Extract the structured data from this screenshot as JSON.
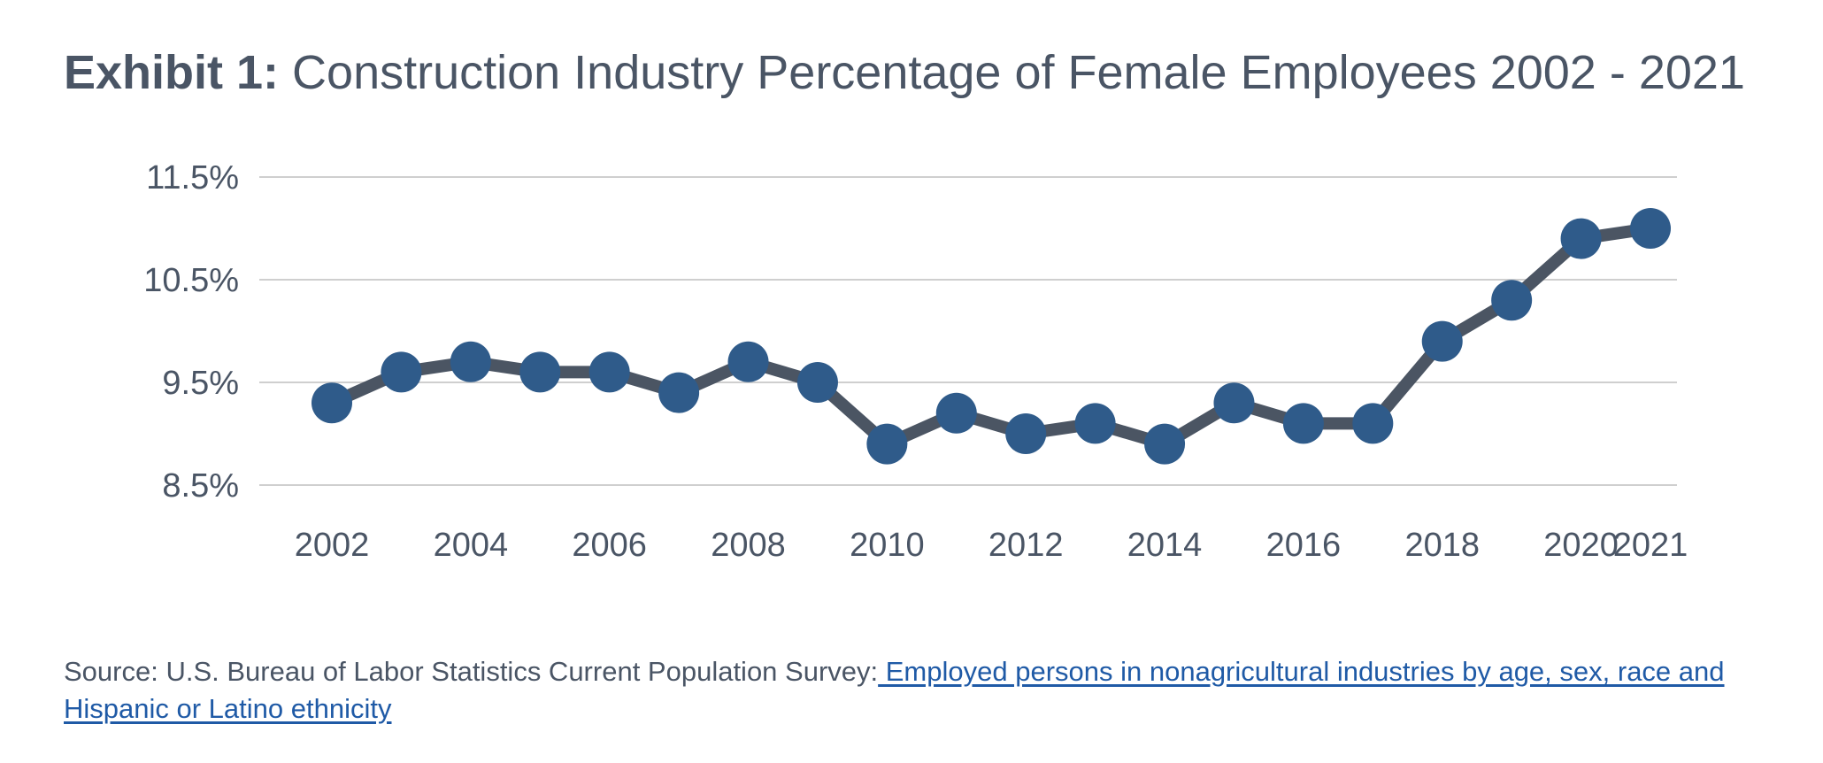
{
  "title": {
    "bold": "Exhibit 1:",
    "rest": " Construction Industry Percentage of Female Employees 2002 - 2021"
  },
  "source": {
    "prefix": "Source: U.S. Bureau of Labor Statistics Current Population Survey:",
    "link_text": " Employed persons in nonagricultural industries by age, sex, race and Hispanic or Latino ethnicity"
  },
  "colors": {
    "line": "#4b5563",
    "marker": "#2f5b8a",
    "grid": "#cfcfcf",
    "text": "#4a5565",
    "link": "#1f5aa6"
  },
  "chart_data": {
    "type": "line",
    "title": "Construction Industry Percentage of Female Employees 2002 - 2021",
    "xlabel": "",
    "ylabel": "",
    "x": [
      2002,
      2003,
      2004,
      2005,
      2006,
      2007,
      2008,
      2009,
      2010,
      2011,
      2012,
      2013,
      2014,
      2015,
      2016,
      2017,
      2018,
      2019,
      2020,
      2021
    ],
    "x_tick_labels": [
      "2002",
      "",
      "2004",
      "",
      "2006",
      "",
      "2008",
      "",
      "2010",
      "",
      "2012",
      "",
      "2014",
      "",
      "2016",
      "",
      "2018",
      "",
      "2020",
      "2021"
    ],
    "series": [
      {
        "values": [
          9.3,
          9.6,
          9.7,
          9.6,
          9.6,
          9.4,
          9.7,
          9.5,
          8.9,
          9.2,
          9.0,
          9.1,
          8.9,
          9.3,
          9.1,
          9.1,
          9.9,
          10.3,
          10.9,
          11.0
        ]
      }
    ],
    "y_ticks": [
      "8.5%",
      "9.5%",
      "10.5%",
      "11.5%"
    ],
    "y_tick_values": [
      8.5,
      9.5,
      10.5,
      11.5
    ],
    "ylim": [
      8.5,
      11.5
    ],
    "grid": true,
    "legend": "none"
  }
}
